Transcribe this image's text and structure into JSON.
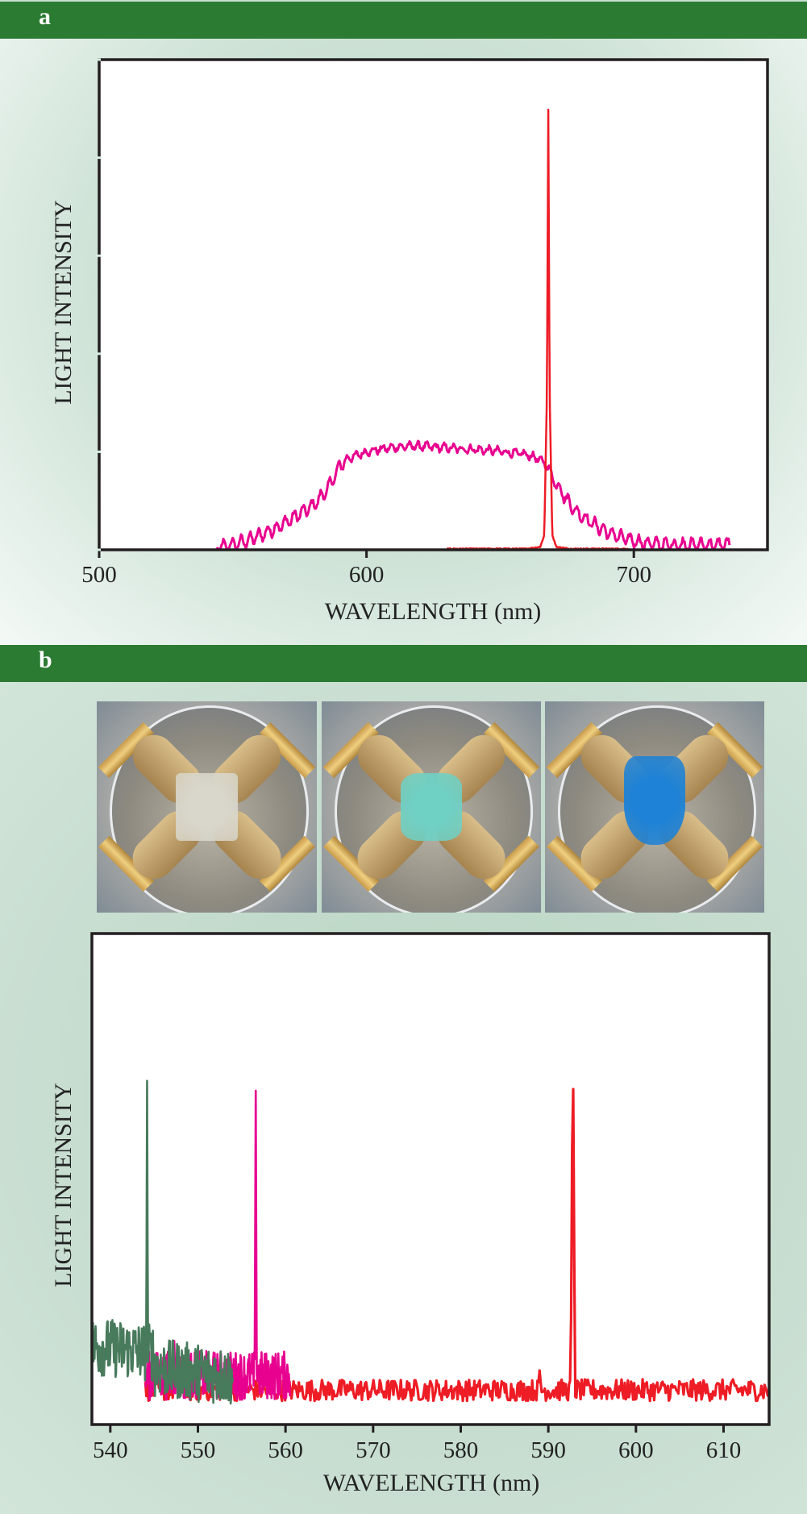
{
  "panels": {
    "a": {
      "label": "a"
    },
    "b": {
      "label": "b"
    }
  },
  "colors": {
    "header_green": "#2b7b33",
    "pink": "#e8008f",
    "red": "#ee1c25",
    "dark_green": "#487a5c"
  },
  "photos": [
    {
      "name": "sample-photo-1",
      "sample_color": "#d9d7cc",
      "description": "square sample, uncolored"
    },
    {
      "name": "sample-photo-2",
      "sample_color": "#6fd0c4",
      "description": "compressed sample, green-cyan"
    },
    {
      "name": "sample-photo-3",
      "sample_color": "#1e82d6",
      "description": "stretched sample, blue"
    }
  ],
  "chart_data": [
    {
      "panel": "a",
      "type": "line",
      "title": "",
      "xlabel": "WAVELENGTH (nm)",
      "ylabel": "LIGHT INTENSITY",
      "xlim": [
        500,
        750
      ],
      "ylim": [
        0,
        5
      ],
      "xticks": [
        500,
        600,
        700
      ],
      "xtick_labels": [
        "500",
        "600",
        "700"
      ],
      "yticks": [
        0,
        1,
        2,
        3,
        4,
        5
      ],
      "ytick_labels": [],
      "grid": false,
      "legend": "none",
      "series": [
        {
          "name": "broadband emission",
          "color": "#e8008f",
          "x": [
            544,
            550,
            556,
            562,
            568,
            574,
            580,
            585,
            588,
            590,
            592,
            596,
            600,
            606,
            612,
            618,
            624,
            630,
            636,
            642,
            648,
            654,
            660,
            664,
            667,
            670,
            674,
            678,
            684,
            690,
            696,
            702,
            708,
            714,
            720,
            726,
            732,
            736
          ],
          "y": [
            0.02,
            0.05,
            0.1,
            0.17,
            0.25,
            0.35,
            0.45,
            0.6,
            0.75,
            0.85,
            0.92,
            0.96,
            1.0,
            1.03,
            1.05,
            1.06,
            1.05,
            1.04,
            1.03,
            1.02,
            1.01,
            0.99,
            0.97,
            0.93,
            0.88,
            0.72,
            0.55,
            0.4,
            0.28,
            0.18,
            0.12,
            0.08,
            0.06,
            0.05,
            0.05,
            0.05,
            0.05,
            0.06
          ],
          "ripple": true
        },
        {
          "name": "lasing peak",
          "color": "#ee1c25",
          "x": [
            630,
            660,
            665,
            666.5,
            667.5,
            668,
            668.5,
            669.5,
            671,
            676,
            698
          ],
          "y": [
            0.01,
            0.01,
            0.03,
            0.15,
            1.6,
            4.49,
            1.6,
            0.15,
            0.03,
            0.01,
            0.01
          ],
          "peak_wavelength": 668
        }
      ]
    },
    {
      "panel": "b",
      "type": "line",
      "title": "",
      "xlabel": "WAVELENGTH (nm)",
      "ylabel": "LIGHT INTENSITY",
      "xlim": [
        537.9,
        615.2
      ],
      "ylim": [
        0,
        1
      ],
      "xticks": [
        540,
        550,
        560,
        570,
        580,
        590,
        600,
        610
      ],
      "xtick_labels": [
        "540",
        "550",
        "560",
        "570",
        "580",
        "590",
        "600",
        "610"
      ],
      "grid": false,
      "legend": "none",
      "series": [
        {
          "name": "red",
          "color": "#ee1c25",
          "x_range": [
            544,
            615.2
          ],
          "baseline": 0.07,
          "noise": 0.022,
          "peaks": [
            {
              "x": 592.8,
              "y": 0.8,
              "width": 0.25
            },
            {
              "x": 589.0,
              "y": 0.11,
              "width": 0.2
            }
          ]
        },
        {
          "name": "pink",
          "color": "#e8008f",
          "x_range": [
            544,
            560.5
          ],
          "baseline": 0.1,
          "noise": 0.05,
          "peaks": [
            {
              "x": 556.6,
              "y": 0.68,
              "width": 0.12
            },
            {
              "x": 547.3,
              "y": 0.17,
              "width": 0.1
            }
          ]
        },
        {
          "name": "green",
          "color": "#487a5c",
          "x_range": [
            537.9,
            554.0
          ],
          "baseline": 0.13,
          "noise": 0.06,
          "peaks": [
            {
              "x": 544.2,
              "y": 0.7,
              "width": 0.1
            }
          ]
        }
      ]
    }
  ]
}
